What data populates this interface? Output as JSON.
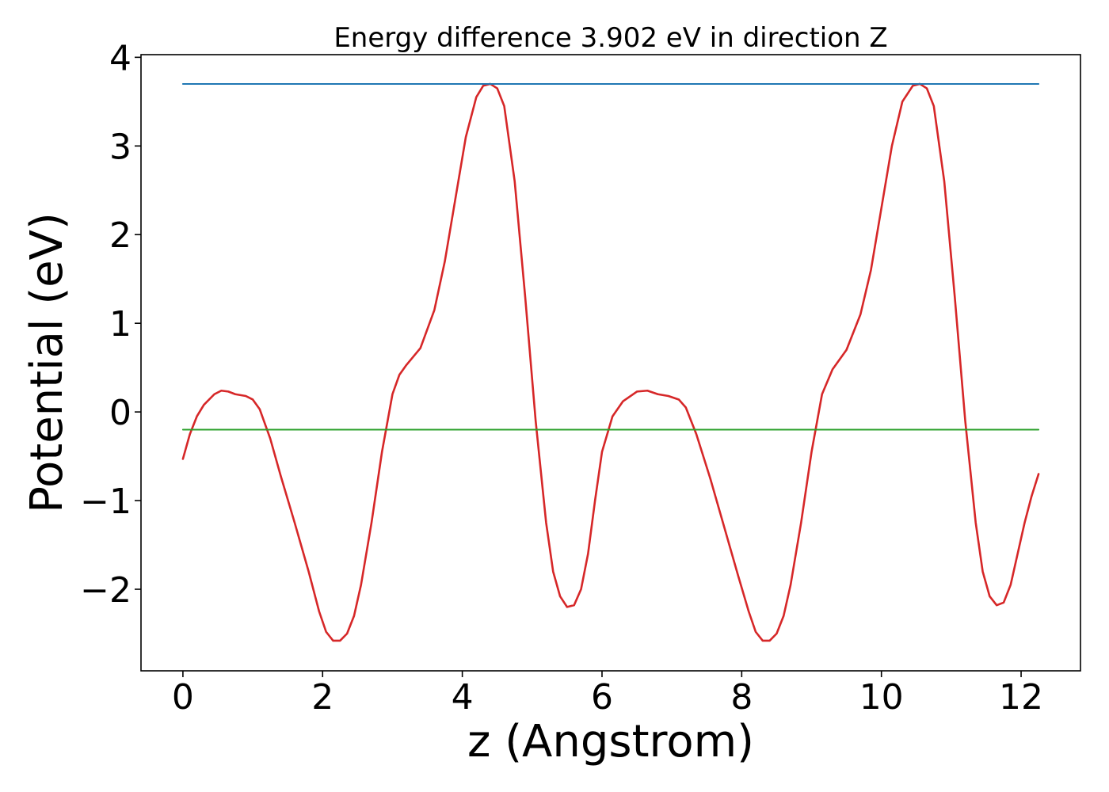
{
  "chart_data": {
    "type": "line",
    "title": "Energy difference 3.902 eV in direction Z",
    "xlabel": "z (Angstrom)",
    "ylabel": "Potential (eV)",
    "xlim": [
      -0.6,
      12.85
    ],
    "ylim": [
      -2.92,
      4.03
    ],
    "xticks": [
      0,
      2,
      4,
      6,
      8,
      10,
      12
    ],
    "yticks": [
      -2,
      -1,
      0,
      1,
      2,
      3,
      4
    ],
    "grid": false,
    "series": [
      {
        "kind": "curve",
        "color": "#d62728",
        "x": [
          0.0,
          0.1,
          0.2,
          0.3,
          0.45,
          0.55,
          0.65,
          0.75,
          0.9,
          1.0,
          1.1,
          1.25,
          1.4,
          1.6,
          1.8,
          1.95,
          2.05,
          2.15,
          2.25,
          2.35,
          2.45,
          2.55,
          2.7,
          2.85,
          3.0,
          3.1,
          3.2,
          3.4,
          3.6,
          3.75,
          3.9,
          4.05,
          4.2,
          4.3,
          4.4,
          4.5,
          4.6,
          4.75,
          4.9,
          5.05,
          5.2,
          5.3,
          5.4,
          5.5,
          5.6,
          5.7,
          5.8,
          5.9,
          6.0,
          6.15,
          6.3,
          6.5,
          6.65,
          6.8,
          6.95,
          7.1,
          7.2,
          7.35,
          7.55,
          7.75,
          7.95,
          8.1,
          8.2,
          8.3,
          8.4,
          8.5,
          8.6,
          8.7,
          8.85,
          9.0,
          9.15,
          9.3,
          9.5,
          9.7,
          9.85,
          10.0,
          10.15,
          10.3,
          10.45,
          10.55,
          10.65,
          10.75,
          10.9,
          11.05,
          11.2,
          11.35,
          11.45,
          11.55,
          11.65,
          11.75,
          11.85,
          11.95,
          12.05,
          12.15,
          12.25
        ],
        "y": [
          -0.53,
          -0.25,
          -0.05,
          0.08,
          0.2,
          0.24,
          0.23,
          0.2,
          0.18,
          0.14,
          0.03,
          -0.3,
          -0.72,
          -1.25,
          -1.8,
          -2.25,
          -2.48,
          -2.58,
          -2.58,
          -2.5,
          -2.3,
          -1.95,
          -1.25,
          -0.45,
          0.2,
          0.42,
          0.53,
          0.72,
          1.15,
          1.7,
          2.4,
          3.1,
          3.55,
          3.68,
          3.7,
          3.65,
          3.45,
          2.6,
          1.3,
          -0.1,
          -1.25,
          -1.8,
          -2.08,
          -2.2,
          -2.18,
          -2.0,
          -1.6,
          -1.0,
          -0.45,
          -0.05,
          0.12,
          0.23,
          0.24,
          0.2,
          0.18,
          0.14,
          0.05,
          -0.25,
          -0.75,
          -1.3,
          -1.85,
          -2.25,
          -2.48,
          -2.58,
          -2.58,
          -2.5,
          -2.3,
          -1.95,
          -1.25,
          -0.45,
          0.2,
          0.48,
          0.7,
          1.1,
          1.6,
          2.3,
          3.0,
          3.5,
          3.68,
          3.7,
          3.65,
          3.45,
          2.6,
          1.3,
          -0.1,
          -1.25,
          -1.8,
          -2.08,
          -2.18,
          -2.15,
          -1.95,
          -1.6,
          -1.25,
          -0.95,
          -0.7
        ]
      },
      {
        "kind": "hline",
        "color": "#1f77b4",
        "x": [
          0.0,
          12.25
        ],
        "y": [
          3.7,
          3.7
        ]
      },
      {
        "kind": "hline",
        "color": "#2ca02c",
        "x": [
          0.0,
          12.25
        ],
        "y": [
          -0.2,
          -0.2
        ]
      }
    ]
  }
}
